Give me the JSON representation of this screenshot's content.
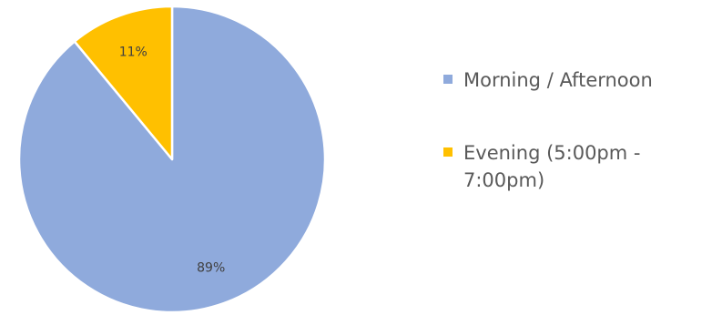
{
  "chart_data": {
    "type": "pie",
    "start_angle_deg": 0,
    "direction": "clockwise",
    "legend_position": "right",
    "slices": [
      {
        "label_lines": [
          "Morning / Afternoon"
        ],
        "value": 89,
        "display": "89%",
        "color": "#8faadc"
      },
      {
        "label_lines": [
          "Evening (5:00pm -",
          "7:00pm)"
        ],
        "value": 11,
        "display": "11%",
        "color": "#ffc000"
      }
    ]
  }
}
